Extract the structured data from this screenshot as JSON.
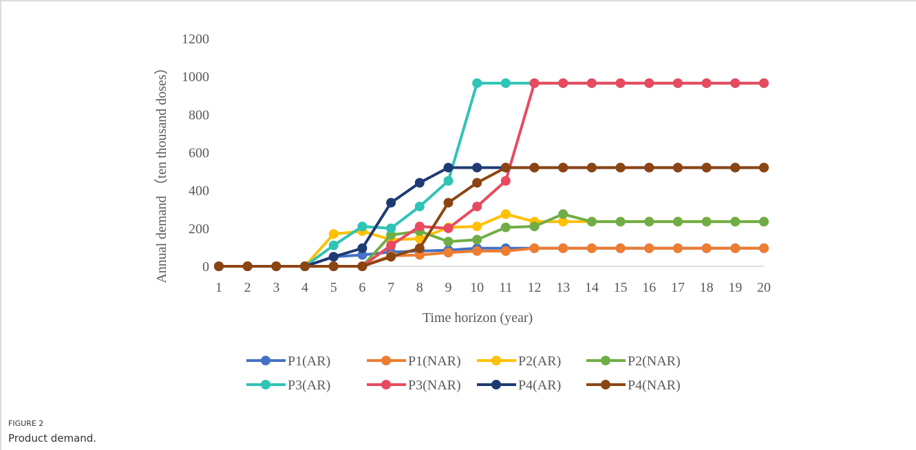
{
  "chart_data": {
    "type": "line",
    "xlabel": "Time horizon (year)",
    "ylabel": "Annual demand （ten thousand doses）",
    "x": [
      1,
      2,
      3,
      4,
      5,
      6,
      7,
      8,
      9,
      10,
      11,
      12,
      13,
      14,
      15,
      16,
      17,
      18,
      19,
      20
    ],
    "xlim": [
      1,
      20
    ],
    "xticks": [
      1,
      2,
      3,
      4,
      5,
      6,
      7,
      8,
      9,
      10,
      11,
      12,
      13,
      14,
      15,
      16,
      17,
      18,
      19,
      20
    ],
    "ylim": [
      0,
      1200
    ],
    "yticks": [
      0,
      200,
      400,
      600,
      800,
      1000,
      1200
    ],
    "series": [
      {
        "name": "P1(AR)",
        "color": "#4472c4",
        "values": [
          0,
          0,
          0,
          0,
          50,
          60,
          75,
          80,
          85,
          95,
          95,
          95,
          95,
          95,
          95,
          95,
          95,
          95,
          95,
          95
        ]
      },
      {
        "name": "P1(NAR)",
        "color": "#ed7d31",
        "values": [
          0,
          0,
          0,
          0,
          0,
          0,
          55,
          60,
          72,
          80,
          80,
          95,
          95,
          95,
          95,
          95,
          95,
          95,
          95,
          95
        ]
      },
      {
        "name": "P2(AR)",
        "color": "#ffc000",
        "values": [
          0,
          0,
          0,
          0,
          170,
          185,
          140,
          145,
          205,
          210,
          275,
          235,
          235,
          235,
          235,
          235,
          235,
          235,
          235,
          235
        ]
      },
      {
        "name": "P2(NAR)",
        "color": "#70ad47",
        "values": [
          0,
          0,
          0,
          0,
          0,
          0,
          165,
          185,
          130,
          140,
          205,
          210,
          275,
          235,
          235,
          235,
          235,
          235,
          235,
          235
        ]
      },
      {
        "name": "P3(AR)",
        "color": "#2ec4b6",
        "values": [
          0,
          0,
          0,
          0,
          110,
          210,
          200,
          315,
          450,
          965,
          965,
          965,
          965,
          965,
          965,
          965,
          965,
          965,
          965,
          965
        ]
      },
      {
        "name": "P3(NAR)",
        "color": "#e84a5f",
        "values": [
          0,
          0,
          0,
          0,
          0,
          0,
          110,
          210,
          200,
          315,
          450,
          965,
          965,
          965,
          965,
          965,
          965,
          965,
          965,
          965
        ]
      },
      {
        "name": "P4(AR)",
        "color": "#1f3b73",
        "values": [
          0,
          0,
          0,
          0,
          50,
          95,
          335,
          440,
          520,
          520,
          520,
          520,
          520,
          520,
          520,
          520,
          520,
          520,
          520,
          520
        ]
      },
      {
        "name": "P4(NAR)",
        "color": "#8b4513",
        "values": [
          0,
          0,
          0,
          0,
          0,
          0,
          50,
          95,
          335,
          440,
          520,
          520,
          520,
          520,
          520,
          520,
          520,
          520,
          520,
          520
        ]
      }
    ],
    "figure_label": "FIGURE 2",
    "caption": "Product demand."
  }
}
